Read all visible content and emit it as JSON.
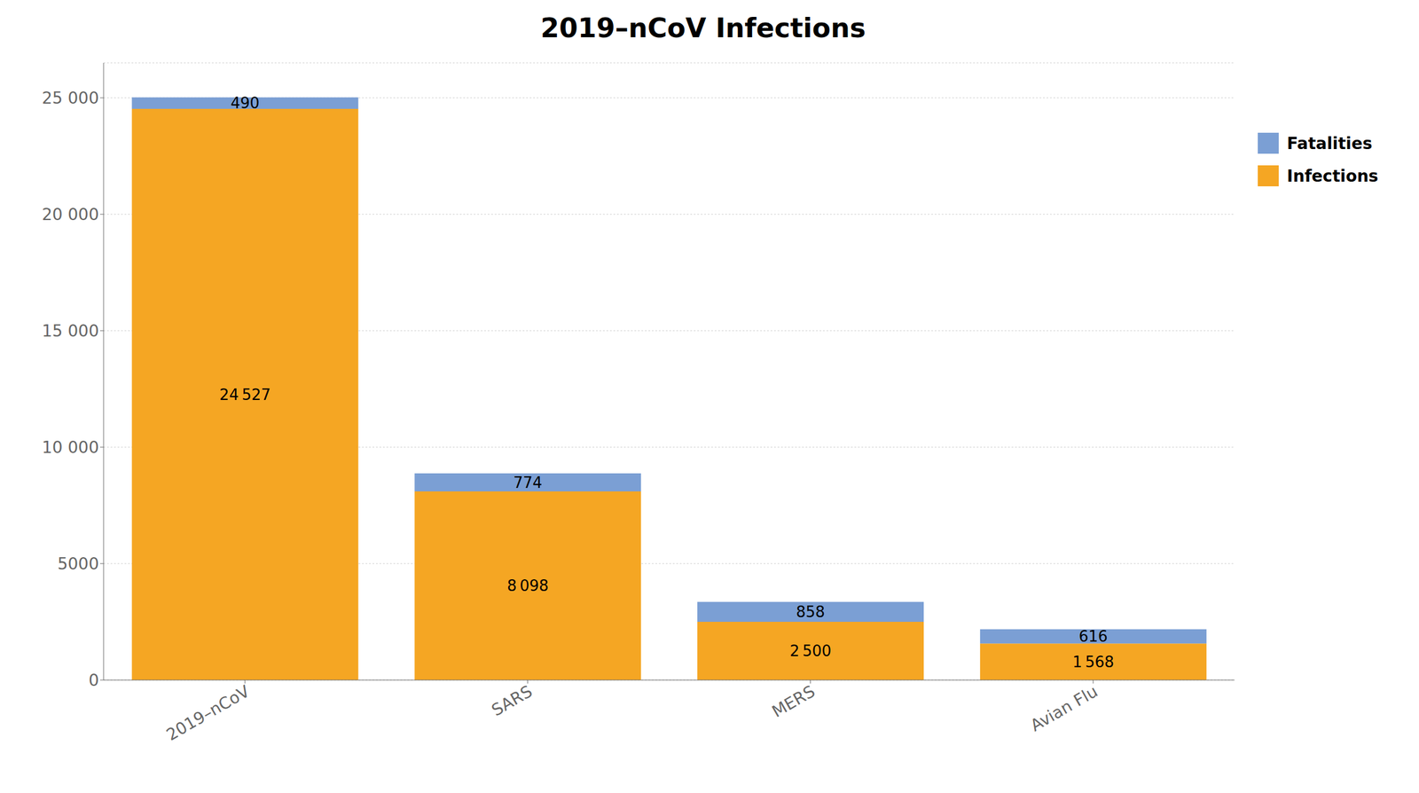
{
  "chart_data": {
    "type": "bar",
    "title": "2019–nCoV Infections",
    "categories": [
      "2019–nCoV",
      "SARS",
      "MERS",
      "Avian Flu"
    ],
    "stacked": true,
    "series": [
      {
        "name": "Infections",
        "color": "#F5A623",
        "values": [
          24527,
          8098,
          2500,
          1568
        ],
        "value_labels": [
          "24 527",
          "8 098",
          "2 500",
          "1 568"
        ]
      },
      {
        "name": "Fatalities",
        "color": "#7B9FD4",
        "values": [
          490,
          774,
          858,
          616
        ]
      }
    ],
    "ylim": [
      0,
      26500
    ],
    "yticks": [
      0,
      5000,
      {
        "value": 10000,
        "label": "10 000"
      },
      {
        "value": 15000,
        "label": "15 000"
      },
      {
        "value": 20000,
        "label": "20 000"
      },
      {
        "value": 25000,
        "label": "25 000"
      }
    ],
    "grid": true,
    "legend": "upper right",
    "data_labels": true
  }
}
